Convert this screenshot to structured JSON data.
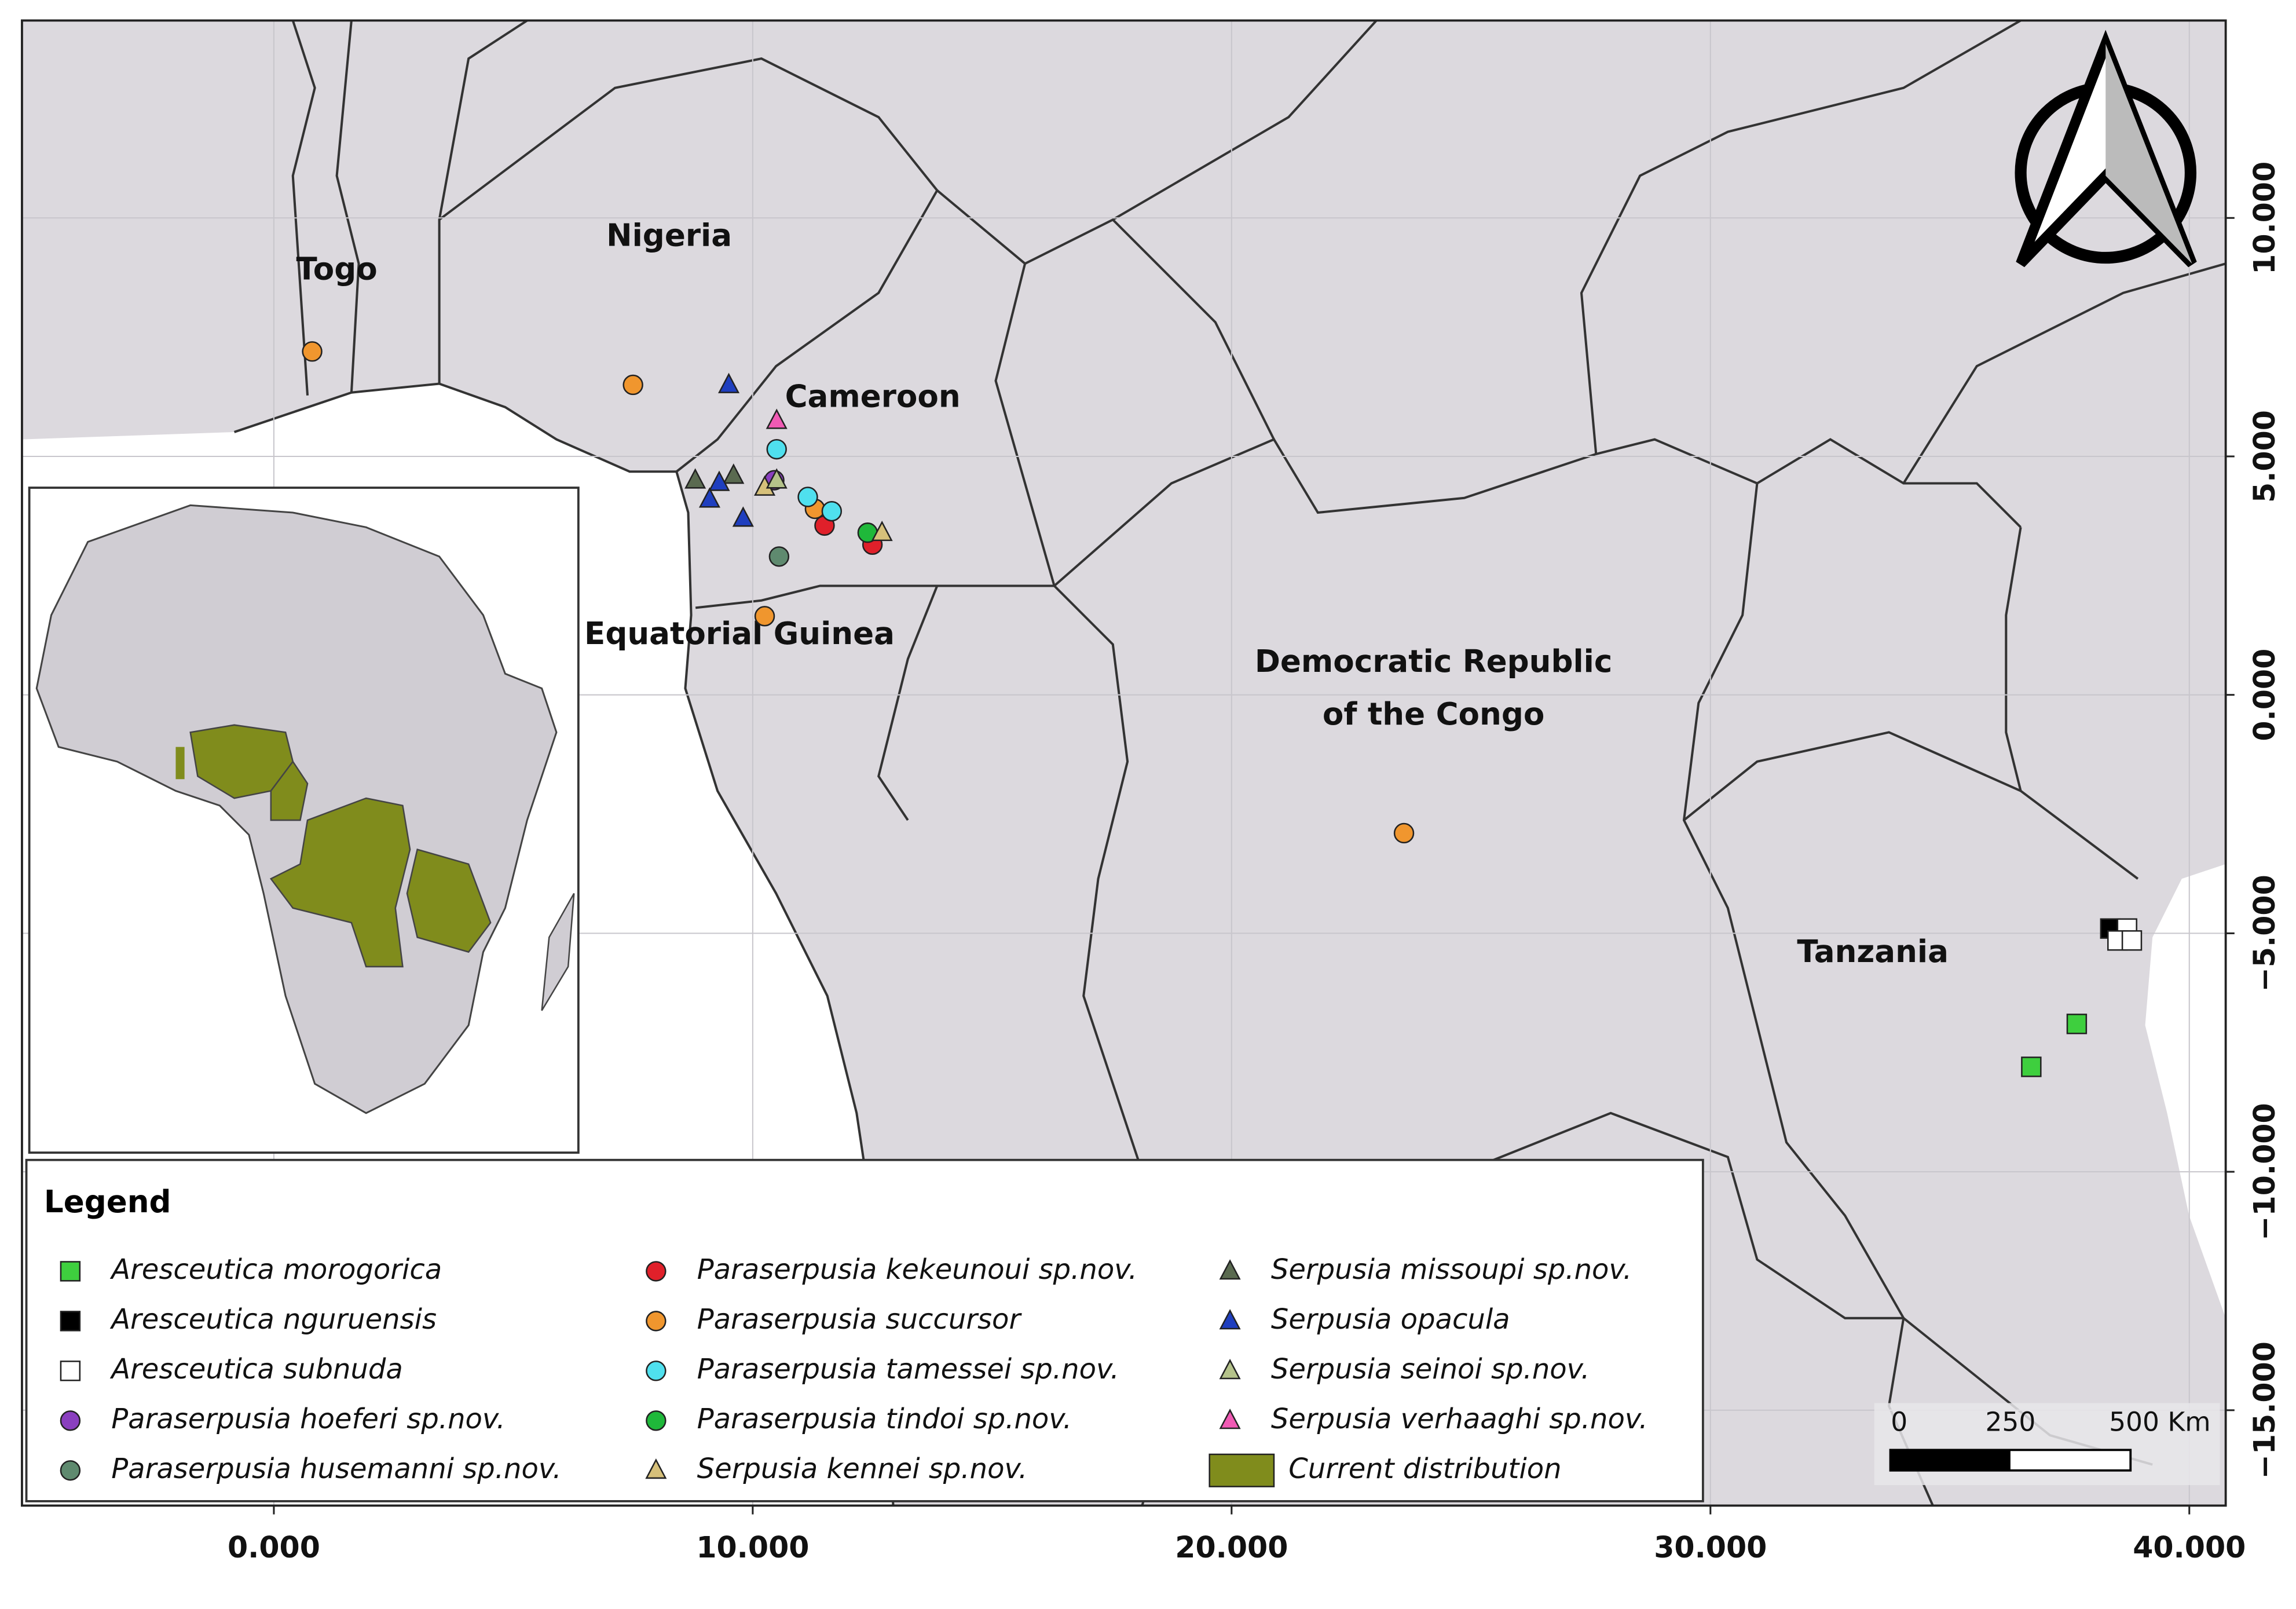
{
  "map": {
    "xlim": [
      -5.26,
      40.76
    ],
    "ylim": [
      -17.0,
      14.14
    ],
    "x_ticks": [
      {
        "value": 0,
        "label": "0.000"
      },
      {
        "value": 10,
        "label": "10.000"
      },
      {
        "value": 20,
        "label": "20.000"
      },
      {
        "value": 30,
        "label": "30.000"
      },
      {
        "value": 40,
        "label": "40.000"
      }
    ],
    "y_ticks": [
      {
        "value": 10,
        "label": "10.000"
      },
      {
        "value": 5,
        "label": "5.000"
      },
      {
        "value": 0,
        "label": "0.000"
      },
      {
        "value": -5,
        "label": "−5.000"
      },
      {
        "value": -10,
        "label": "−10.000"
      },
      {
        "value": -15,
        "label": "−15.000"
      }
    ],
    "country_labels": [
      "Togo",
      "Nigeria",
      "Cameroon",
      "Equatorial Guinea",
      [
        "Democratic Republic",
        "of the Congo"
      ],
      "Tanzania"
    ],
    "legend": {
      "title": "Legend",
      "entries": [
        {
          "label": "Aresceutica morogorica",
          "symbol": "square",
          "color": "#3ecf3e",
          "lon": [
            37.65,
            36.7
          ],
          "lat": [
            -6.9,
            -7.8
          ]
        },
        {
          "label": "Aresceutica nguruensis",
          "symbol": "square",
          "color": "#000000",
          "lon": [
            38.35
          ],
          "lat": [
            -4.9
          ]
        },
        {
          "label": "Aresceutica subnuda",
          "symbol": "square",
          "color": "#ffffff",
          "lon": [
            38.7,
            38.5,
            38.8
          ],
          "lat": [
            -4.9,
            -5.15,
            -5.15
          ]
        },
        {
          "label": "Paraserpusia hoeferi sp.nov.",
          "symbol": "circle",
          "color": "#8a3fbf",
          "lon": [
            10.45
          ],
          "lat": [
            4.5
          ]
        },
        {
          "label": "Paraserpusia husemanni sp.nov.",
          "symbol": "circle",
          "color": "#5f8a6f",
          "lon": [
            10.55
          ],
          "lat": [
            2.9
          ]
        },
        {
          "label": "Paraserpusia kekeunoui sp.nov.",
          "symbol": "circle",
          "color": "#e0202a",
          "lon": [
            11.5,
            12.5
          ],
          "lat": [
            3.55,
            3.15
          ]
        },
        {
          "label": "Paraserpusia succursor",
          "symbol": "circle",
          "color": "#f0962e",
          "lon": [
            0.8,
            7.5,
            10.25,
            23.6,
            11.3
          ],
          "lat": [
            7.2,
            6.5,
            1.65,
            -2.9,
            3.9
          ]
        },
        {
          "label": "Paraserpusia tamessei sp.nov.",
          "symbol": "circle",
          "color": "#4fe0ee",
          "lon": [
            10.5,
            11.15,
            11.65
          ],
          "lat": [
            5.15,
            4.15,
            3.85
          ]
        },
        {
          "label": "Paraserpusia tindoi sp.nov.",
          "symbol": "circle",
          "color": "#1fb83a",
          "lon": [
            12.4
          ],
          "lat": [
            3.4
          ]
        },
        {
          "label": "Serpusia kennei sp.nov.",
          "symbol": "triangle",
          "color": "#d6c07a",
          "lon": [
            10.25,
            12.7
          ],
          "lat": [
            4.35,
            3.4
          ]
        },
        {
          "label": "Serpusia missoupi sp.nov.",
          "symbol": "triangle",
          "color": "#5a6a50",
          "lon": [
            9.6,
            8.8
          ],
          "lat": [
            4.6,
            4.5
          ]
        },
        {
          "label": "Serpusia opacula",
          "symbol": "triangle",
          "color": "#1f3fbf",
          "lon": [
            9.5,
            9.3,
            9.1,
            9.8
          ],
          "lat": [
            6.5,
            4.45,
            4.1,
            3.7
          ]
        },
        {
          "label": "Serpusia seinoi sp.nov.",
          "symbol": "triangle",
          "color": "#b4c28a",
          "lon": [
            10.5
          ],
          "lat": [
            4.5
          ]
        },
        {
          "label": "Serpusia verhaaghi sp.nov.",
          "symbol": "triangle",
          "color": "#f05ab4",
          "lon": [
            10.5
          ],
          "lat": [
            5.75
          ]
        },
        {
          "label": "Current distribution",
          "symbol": "patch",
          "color": "#808c1c"
        }
      ]
    },
    "scale_bar": {
      "labels": [
        "0",
        "250",
        "500 Km"
      ]
    }
  }
}
